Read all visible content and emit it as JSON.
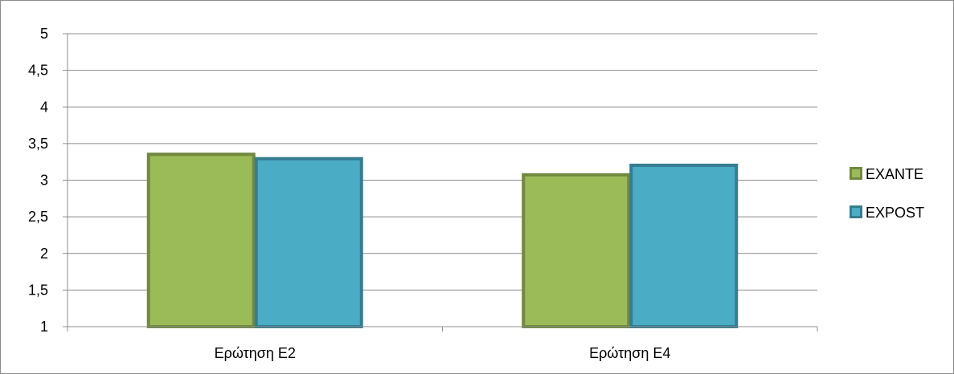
{
  "chart_data": {
    "type": "bar",
    "title": "",
    "xlabel": "",
    "ylabel": "",
    "categories": [
      "Ερώτηση Ε2",
      "Ερώτηση Ε4"
    ],
    "series": [
      {
        "name": "EXANTE",
        "values": [
          3.37,
          3.09
        ],
        "color": "#9bbb59",
        "stroke": "#71893f"
      },
      {
        "name": "EXPOST",
        "values": [
          3.31,
          3.22
        ],
        "color": "#4bacc6",
        "stroke": "#357d91"
      }
    ],
    "ylim": [
      1,
      5
    ],
    "yticks": [
      1,
      1.5,
      2,
      2.5,
      3,
      3.5,
      4,
      4.5,
      5
    ],
    "ytick_labels": [
      "1",
      "1,5",
      "2",
      "2,5",
      "3",
      "3,5",
      "4",
      "4,5",
      "5"
    ],
    "grid": true,
    "legend_position": "right"
  }
}
